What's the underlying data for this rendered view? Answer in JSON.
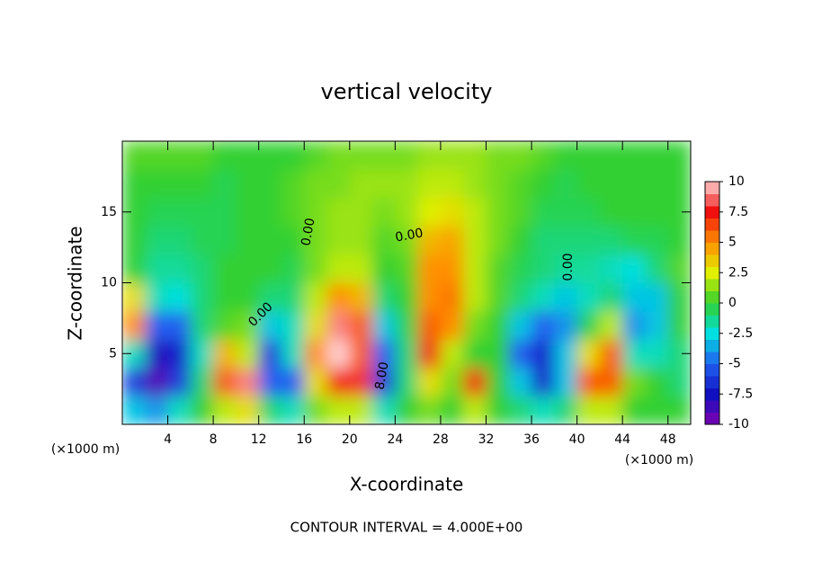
{
  "chart_data": {
    "type": "contour",
    "title": "vertical velocity",
    "x_label": "X-coordinate",
    "y_label": "Z-coordinate",
    "x_unit": "(×1000 m)",
    "footer": "CONTOUR INTERVAL = 4.000E+00",
    "xlim": [
      0,
      50
    ],
    "ylim": [
      0,
      20
    ],
    "xticks": [
      4,
      8,
      12,
      16,
      20,
      24,
      28,
      32,
      36,
      40,
      44,
      48
    ],
    "yticks": [
      5,
      10,
      15
    ],
    "x": [
      1,
      3,
      5,
      7,
      9,
      11,
      13,
      15,
      17,
      19,
      21,
      23,
      25,
      27,
      29,
      31,
      33,
      35,
      37,
      39,
      41,
      43,
      45,
      47,
      49
    ],
    "y": [
      1,
      3,
      5,
      7,
      9,
      11,
      13,
      15,
      17,
      19
    ],
    "z": [
      [
        -3,
        -4,
        -2,
        0,
        2,
        3,
        -1,
        -2,
        1,
        2,
        2,
        -2,
        0,
        1,
        0,
        2,
        0,
        -1,
        -2,
        -1,
        2,
        2,
        0,
        0,
        0
      ],
      [
        -6,
        -9,
        -6,
        -1,
        6,
        9,
        -5,
        -5,
        3,
        7,
        8,
        -6,
        -1,
        3,
        1,
        7,
        0,
        -3,
        -7,
        -3,
        6,
        6,
        1,
        0,
        -1
      ],
      [
        -2,
        -8,
        -7,
        -2,
        4,
        2,
        -6,
        -2,
        5,
        10,
        6,
        -5,
        -1,
        7,
        2,
        0,
        0,
        -5,
        -7,
        -3,
        3,
        6,
        -2,
        -2,
        -1
      ],
      [
        5,
        -5,
        -5,
        -1,
        0.5,
        1,
        -3,
        -2,
        3,
        9,
        6,
        -3,
        -0.5,
        6,
        5,
        1,
        0,
        -3,
        -5,
        -4,
        -0.5,
        2,
        -4,
        -3,
        0
      ],
      [
        3,
        -2,
        -2.5,
        -1,
        0,
        0,
        -1,
        -1,
        2,
        5,
        4,
        -1,
        0,
        5,
        5.5,
        2,
        0.5,
        -1,
        -2,
        -3,
        -2,
        -1,
        -3,
        -3,
        0
      ],
      [
        0,
        -1.5,
        -1.5,
        -1,
        0,
        0,
        0,
        -0.5,
        1,
        2,
        2,
        0,
        0.5,
        5,
        5,
        2,
        0.5,
        -0.5,
        -1,
        -1.5,
        -1.5,
        -2,
        -2.5,
        -1,
        0.5
      ],
      [
        0,
        -1,
        -1,
        -0.5,
        -0.5,
        0,
        0,
        0,
        1,
        1.5,
        1.5,
        0.5,
        1,
        4,
        4.5,
        2,
        1,
        0,
        -1,
        -1,
        -1,
        -1,
        -0.5,
        -0.5,
        0
      ],
      [
        0,
        -0.5,
        -0.5,
        -0.5,
        -0.5,
        0,
        0,
        0.5,
        1,
        1.5,
        1.5,
        1,
        1.5,
        2.5,
        3,
        2,
        1,
        0.5,
        -0.5,
        -0.5,
        -0.5,
        0,
        0,
        0,
        0
      ],
      [
        0,
        0,
        0,
        0,
        -0.5,
        0,
        0,
        0.5,
        1,
        1,
        1.5,
        1.5,
        1.5,
        2,
        2,
        1.5,
        1,
        0.5,
        0,
        -0.5,
        0,
        0,
        0,
        0,
        0
      ],
      [
        0.5,
        0.5,
        0.5,
        0.5,
        0,
        0,
        0,
        0,
        0.5,
        1,
        1,
        1,
        1,
        1.5,
        1.5,
        1.5,
        1,
        1,
        0.5,
        0,
        0,
        0,
        0,
        0,
        0
      ]
    ],
    "contour_levels": [
      {
        "value": 0,
        "label": "0.00"
      },
      {
        "value": 8,
        "label": "8.00"
      }
    ],
    "clim": [
      -10,
      10
    ],
    "colorbar_ticks": [
      -10,
      -7.5,
      -5,
      -2.5,
      0,
      2.5,
      5,
      7.5,
      10
    ],
    "colors": [
      "#8000b0",
      "#1010c0",
      "#2060f0",
      "#00e0e0",
      "#30d030",
      "#e0f000",
      "#ff9000",
      "#f01010",
      "#ffd0d0"
    ]
  }
}
